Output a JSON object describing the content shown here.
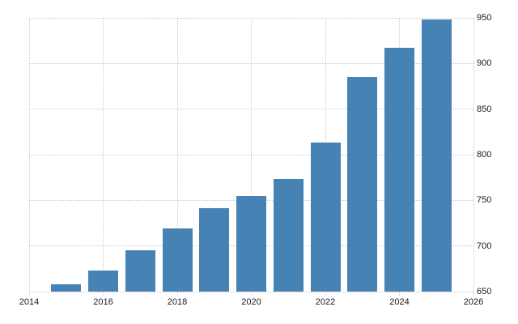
{
  "chart_data": {
    "type": "bar",
    "title": "",
    "xlabel": "",
    "ylabel": "",
    "categories": [
      2015,
      2016,
      2017,
      2018,
      2019,
      2020,
      2021,
      2022,
      2023,
      2024,
      2025
    ],
    "values": [
      658,
      673,
      695,
      719,
      741,
      755,
      773,
      813,
      885,
      917,
      948
    ],
    "xlim": [
      2014,
      2026
    ],
    "ylim": [
      650,
      950
    ],
    "x_tick_labels": [
      "2014",
      "2016",
      "2018",
      "2020",
      "2022",
      "2024",
      "2026"
    ],
    "y_tick_labels": [
      "650",
      "700",
      "750",
      "800",
      "850",
      "900",
      "950"
    ],
    "y_axis_side": "right",
    "legend": "none",
    "grid": "dotted-both-axes",
    "colors": {
      "bar": "#4682b4",
      "grid": "#c9c9c9",
      "tick_label": "#1a1a1a",
      "background": "#ffffff"
    }
  }
}
